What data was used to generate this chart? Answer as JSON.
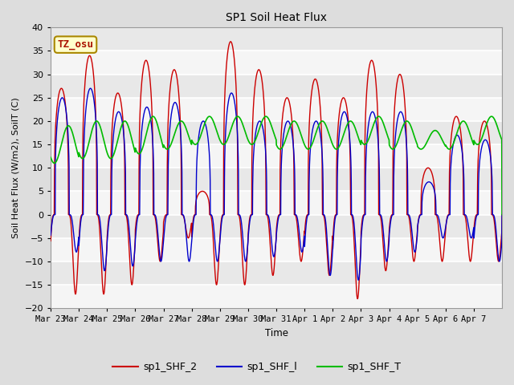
{
  "title": "SP1 Soil Heat Flux",
  "xlabel": "Time",
  "ylabel": "Soil Heat Flux (W/m2), SoilT (C)",
  "ylim": [
    -20,
    40
  ],
  "tick_labels": [
    "Mar 23",
    "Mar 24",
    "Mar 25",
    "Mar 26",
    "Mar 27",
    "Mar 28",
    "Mar 29",
    "Mar 30",
    "Mar 31",
    "Apr 1",
    "Apr 2",
    "Apr 3",
    "Apr 4",
    "Apr 5",
    "Apr 6",
    "Apr 7"
  ],
  "color_shf2": "#cc0000",
  "color_shf1": "#0000cc",
  "color_shft": "#00bb00",
  "annotation_text": "TZ_osu",
  "annotation_color": "#aa1100",
  "annotation_bg": "#ffffcc",
  "annotation_border": "#aa8800",
  "legend_labels": [
    "sp1_SHF_2",
    "sp1_SHF_l",
    "sp1_SHF_T"
  ],
  "bg_color": "#dddddd",
  "plot_bg_color": "#e8e8e8",
  "grid_color": "#ffffff",
  "n_days": 16,
  "pts_per_day": 144,
  "shf2_peaks": [
    27,
    34,
    26,
    33,
    31,
    5,
    37,
    31,
    25,
    29,
    25,
    33,
    30,
    10,
    21,
    20
  ],
  "shf2_troughs": [
    -17,
    -17,
    -15,
    -10,
    -5,
    -15,
    -15,
    -13,
    -10,
    -13,
    -18,
    -12,
    -10,
    -10,
    -10,
    -10
  ],
  "shf1_peaks": [
    25,
    27,
    22,
    23,
    24,
    20,
    26,
    20,
    20,
    20,
    22,
    22,
    22,
    7,
    17,
    16
  ],
  "shf1_troughs": [
    -8,
    -12,
    -11,
    -10,
    -10,
    -10,
    -10,
    -9,
    -8,
    -13,
    -14,
    -10,
    -8,
    -5,
    -5,
    -10
  ],
  "shft_means": [
    15,
    16,
    16,
    17,
    17,
    18,
    18,
    18,
    17,
    17,
    17,
    18,
    17,
    16,
    17,
    18
  ],
  "shft_amps": [
    4,
    4,
    4,
    4,
    3,
    3,
    3,
    3,
    3,
    3,
    3,
    3,
    3,
    2,
    3,
    3
  ]
}
